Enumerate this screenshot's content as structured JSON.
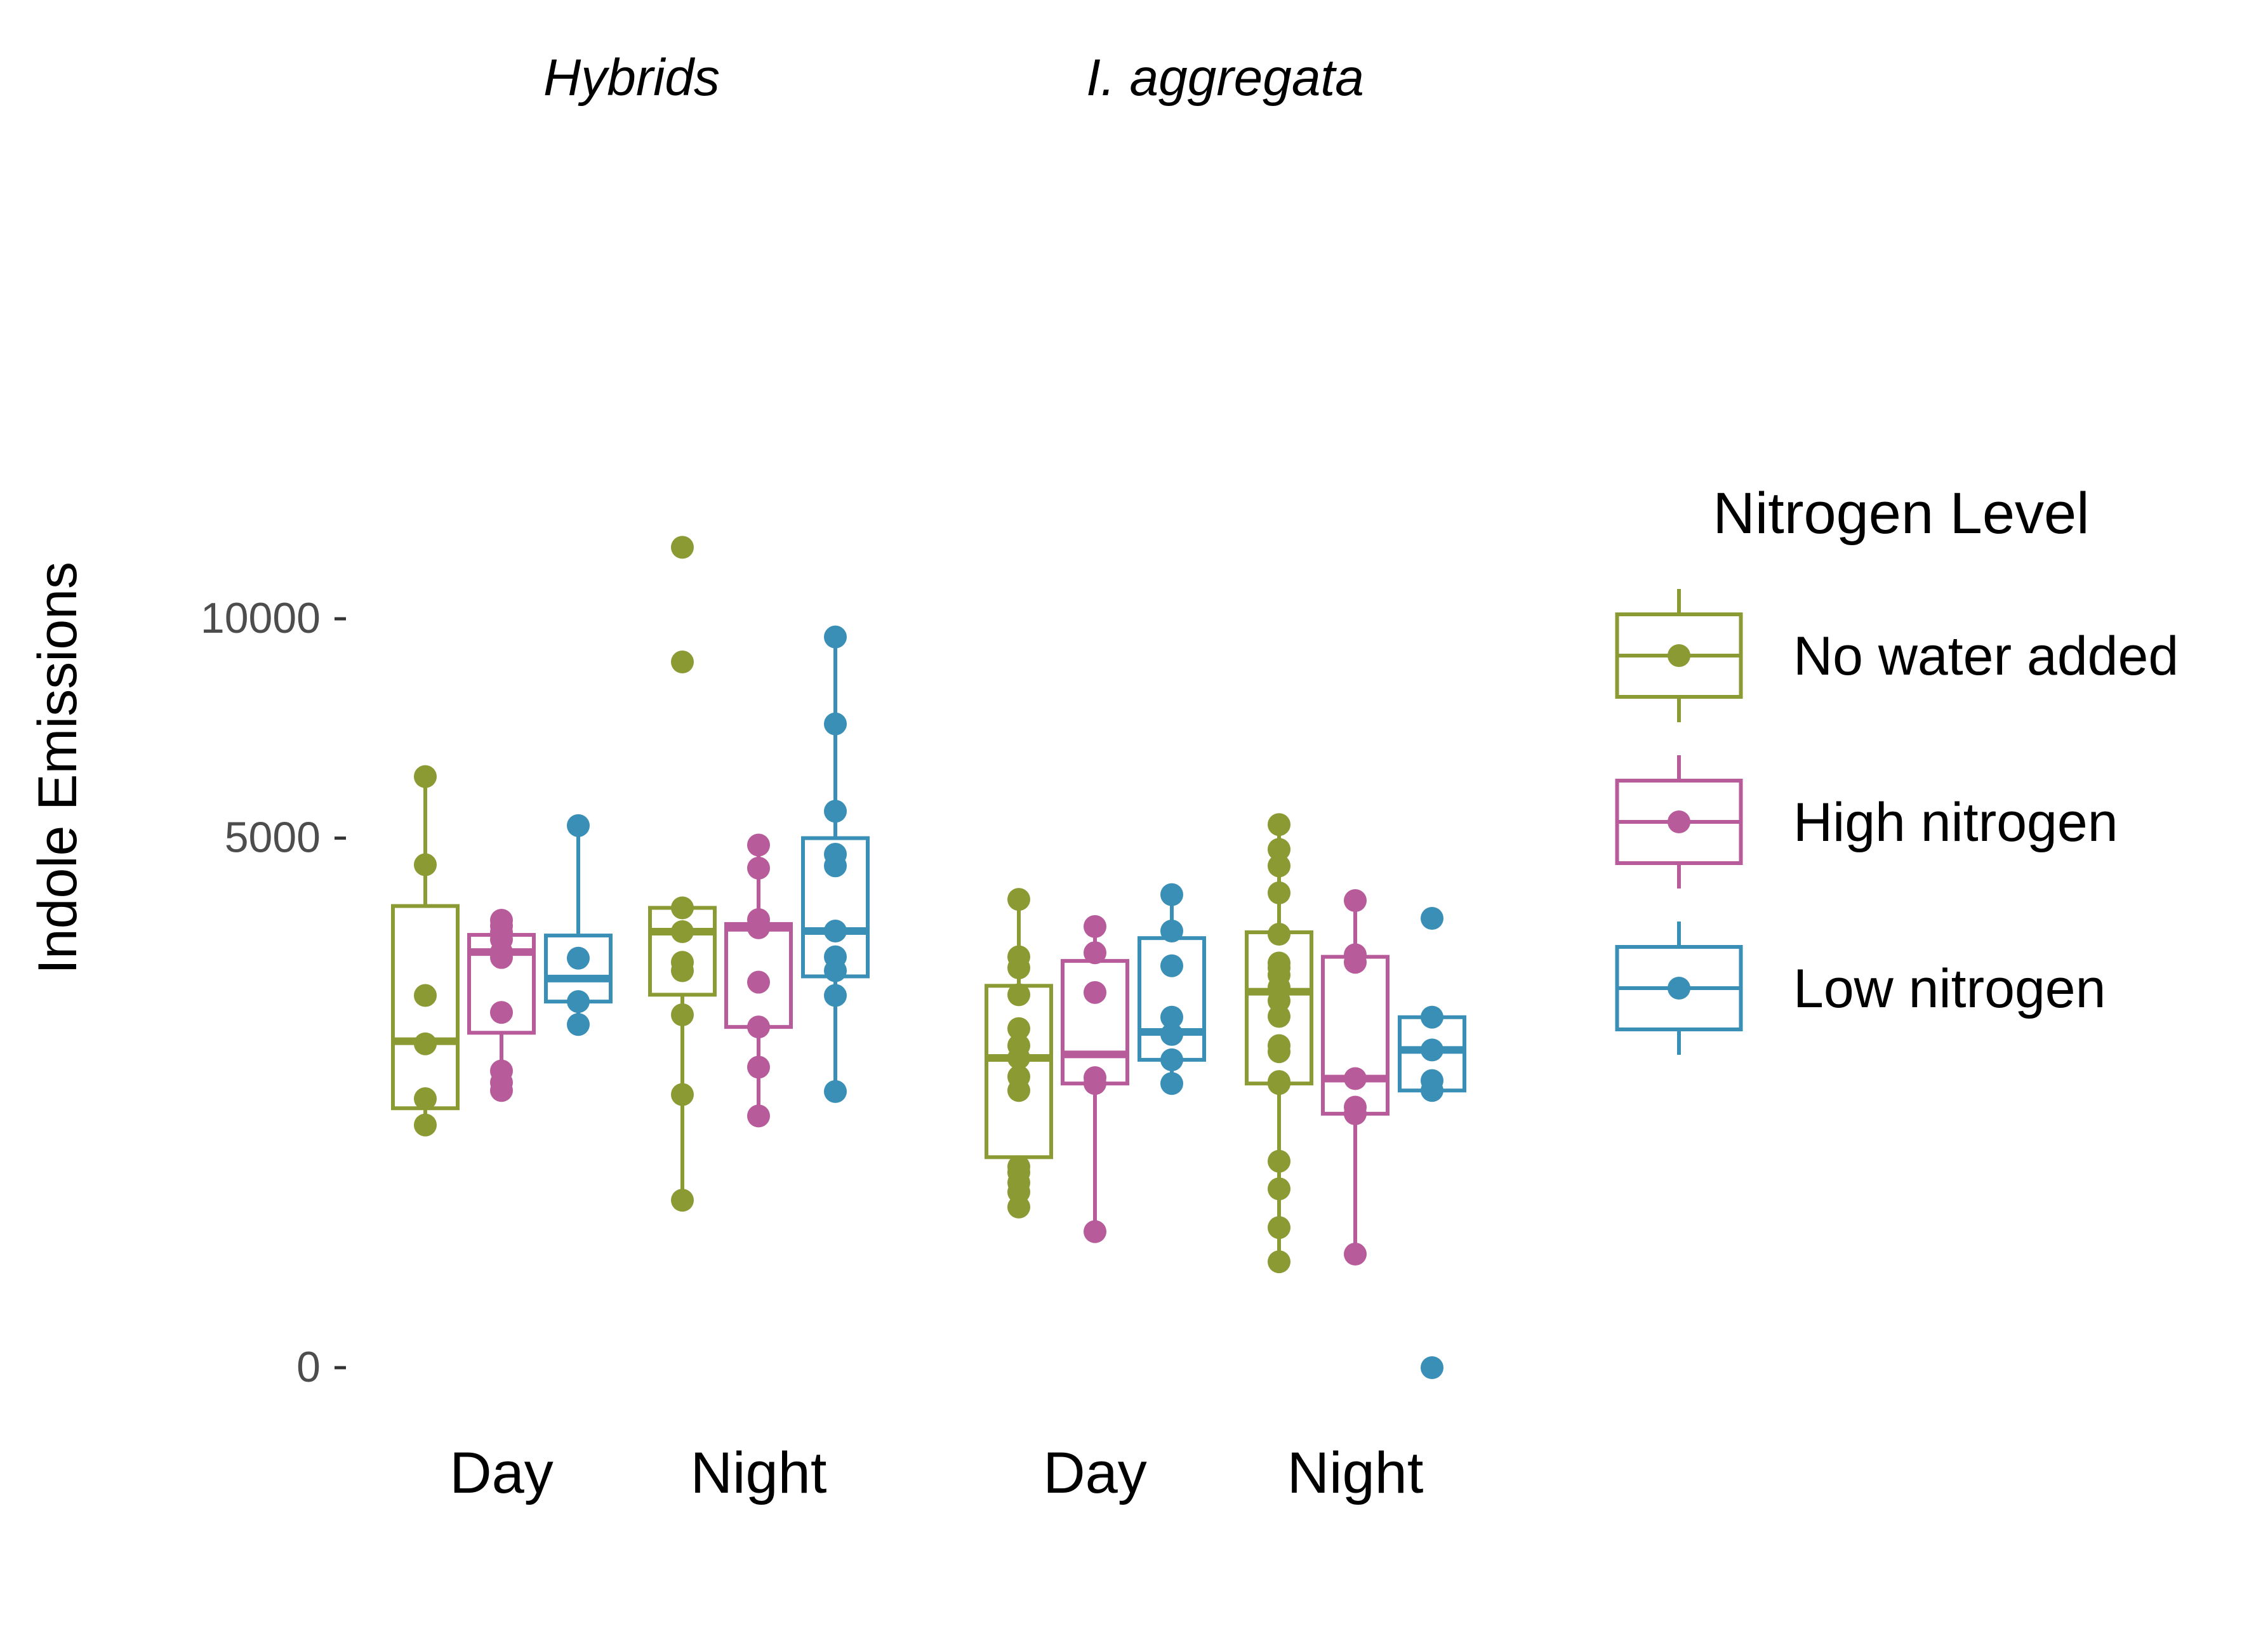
{
  "chart_data": {
    "type": "boxplot",
    "y_label": "Indole Emissions",
    "y_ticks": [
      0,
      5000,
      10000
    ],
    "y_scale": "sqrt",
    "grid": false,
    "legend": {
      "title": "Nitrogen Level",
      "placement": "right",
      "entries": [
        "No water added",
        "High nitrogen",
        "Low nitrogen"
      ]
    },
    "colors": {
      "No water added": "#8b9a32",
      "High nitrogen": "#b85b9a",
      "Low nitrogen": "#3a8fb7"
    },
    "panels": [
      {
        "title": "Hybrids",
        "groups": [
          {
            "label": "Day",
            "series": [
              {
                "name": "No water added",
                "stats": [
                  1200,
                  1900,
                  3800
                ],
                "whiskers": [
                  1050,
                  6230
                ],
                "points": [
                  1050,
                  1290,
                  1870,
                  2470,
                  4510,
                  6230
                ]
              },
              {
                "name": "High nitrogen",
                "stats": [
                  2000,
                  3080,
                  3340
                ],
                "whiskers": [
                  1370,
                  3570
                ],
                "points": [
                  1370,
                  1450,
                  1570,
                  2250,
                  3000,
                  3080,
                  3270,
                  3380,
                  3480,
                  3570
                ]
              },
              {
                "name": "Low nitrogen",
                "stats": [
                  2390,
                  2700,
                  3330
                ],
                "whiskers": [
                  2100,
                  5240
                ],
                "points": [
                  2100,
                  2390,
                  2990,
                  5240
                ]
              }
            ]
          },
          {
            "label": "Night",
            "series": [
              {
                "name": "No water added",
                "stats": [
                  2480,
                  3390,
                  3770
                ],
                "whiskers": [
                  500,
                  3770
                ],
                "points": [
                  500,
                  1330,
                  2220,
                  2810,
                  2930,
                  3390,
                  3770,
                  12000,
                  8880
                ]
              },
              {
                "name": "High nitrogen",
                "stats": [
                  2070,
                  3450,
                  3510
                ],
                "whiskers": [
                  1130,
                  4870
                ],
                "points": [
                  1130,
                  1610,
                  2070,
                  2650,
                  3450,
                  3580,
                  4450,
                  4870
                ]
              },
              {
                "name": "Low nitrogen",
                "stats": [
                  2730,
                  3400,
                  5000
                ],
                "whiskers": [
                  1360,
                  9520
                ],
                "points": [
                  1360,
                  2470,
                  2810,
                  3010,
                  3400,
                  4490,
                  4700,
                  5520,
                  7390,
                  9520
                ]
              }
            ]
          }
        ]
      },
      {
        "title": "I. aggregata",
        "groups": [
          {
            "label": "Day",
            "series": [
              {
                "name": "No water added",
                "stats": [
                  790,
                  1710,
                  2600
                ],
                "whiskers": [
                  460,
                  3910
                ],
                "points": [
                  460,
                  550,
                  610,
                  680,
                  720,
                  1370,
                  1510,
                  1710,
                  1850,
                  2050,
                  2480,
                  2850,
                  3010,
                  3910
                ]
              },
              {
                "name": "High nitrogen",
                "stats": [
                  1440,
                  1750,
                  2950
                ],
                "whiskers": [
                  330,
                  3470
                ],
                "points": [
                  330,
                  1440,
                  1500,
                  2510,
                  3070,
                  3470
                ]
              },
              {
                "name": "Low nitrogen",
                "stats": [
                  1690,
                  2010,
                  3290
                ],
                "whiskers": [
                  1440,
                  3990
                ],
                "points": [
                  1440,
                  1690,
                  1980,
                  2190,
                  2880,
                  3400,
                  3990
                ]
              }
            ]
          },
          {
            "label": "Night",
            "series": [
              {
                "name": "No water added",
                "stats": [
                  1440,
                  2520,
                  3380
                ],
                "whiskers": [
                  200,
                  5260
                ],
                "points": [
                  200,
                  350,
                  570,
                  760,
                  1440,
                  1460,
                  1780,
                  1850,
                  2200,
                  2400,
                  2580,
                  2750,
                  2850,
                  2920,
                  3350,
                  4020,
                  4490,
                  4790,
                  5260
                ]
              },
              {
                "name": "High nitrogen",
                "stats": [
                  1150,
                  1490,
                  3010
                ],
                "whiskers": [
                  230,
                  3890
                ],
                "points": [
                  230,
                  1150,
                  1210,
                  1490,
                  2930,
                  3040,
                  3890
                ]
              },
              {
                "name": "Low nitrogen",
                "stats": [
                  1370,
                  1800,
                  2190
                ],
                "whiskers": [
                  1370,
                  2190
                ],
                "points": [
                  0,
                  1370,
                  1470,
                  1800,
                  2190,
                  3600
                ]
              }
            ]
          }
        ]
      }
    ]
  }
}
